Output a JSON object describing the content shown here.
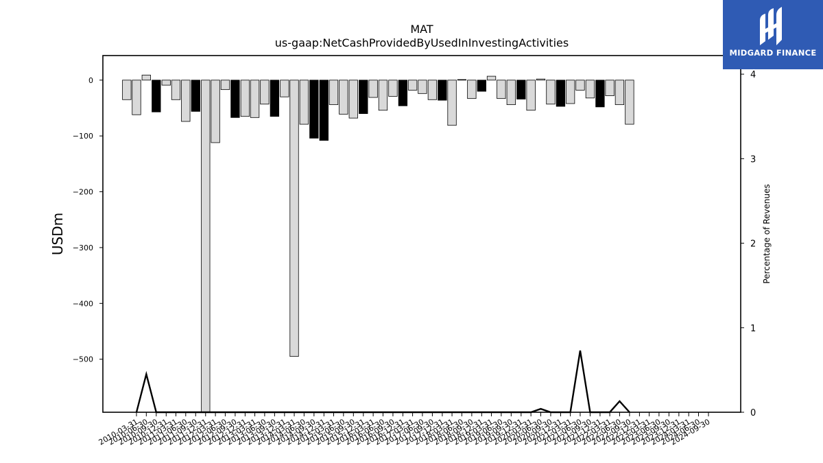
{
  "chart_data": {
    "type": "bar",
    "title": "MAT",
    "subtitle": "us-gaap:NetCashProvidedByUsedInInvestingActivities",
    "ylabel": "USDm",
    "ylabel_right": "Percentage of Revenues",
    "ylim": [
      -595,
      44
    ],
    "ylim_right": [
      0,
      4.22
    ],
    "yticks": [
      0,
      -100,
      -200,
      -300,
      -400,
      -500
    ],
    "yticks_right": [
      0,
      1,
      2,
      3,
      4
    ],
    "xtick_labels": [
      "2010-03-31",
      "2010-06-30",
      "2010-09-30",
      "2010-12-31",
      "2011-03-31",
      "2011-06-30",
      "2011-09-30",
      "2011-12-31",
      "2012-03-31",
      "2012-06-30",
      "2012-09-30",
      "2012-12-31",
      "2013-03-31",
      "2013-06-30",
      "2013-09-30",
      "2013-12-31",
      "2014-03-31",
      "2014-06-30",
      "2014-09-30",
      "2014-12-31",
      "2015-03-31",
      "2015-06-30",
      "2015-09-30",
      "2015-12-31",
      "2016-03-31",
      "2016-06-30",
      "2016-09-30",
      "2016-12-31",
      "2017-03-31",
      "2017-06-30",
      "2017-09-30",
      "2017-12-31",
      "2018-03-31",
      "2018-06-30",
      "2018-09-30",
      "2018-12-31",
      "2019-03-31",
      "2019-06-30",
      "2019-09-30",
      "2019-12-31",
      "2020-03-31",
      "2020-06-30",
      "2020-09-30",
      "2020-12-31",
      "2021-03-31",
      "2021-06-30",
      "2021-09-30",
      "2021-12-31",
      "2022-03-31",
      "2022-06-30",
      "2022-09-30",
      "2022-12-31",
      "2023-03-31",
      "2023-06-30",
      "2023-09-30",
      "2023-12-31",
      "2024-03-31",
      "2024-06-30",
      "2024-09-30"
    ],
    "bars": [
      {
        "x": "2009-12-31",
        "value": -35,
        "color": "#d9d9d9"
      },
      {
        "x": "2010-03-31",
        "value": -62,
        "color": "#d9d9d9"
      },
      {
        "x": "2010-06-30",
        "value": 9,
        "color": "#d9d9d9"
      },
      {
        "x": "2010-09-30",
        "value": -57,
        "color": "#000000"
      },
      {
        "x": "2010-12-31",
        "value": -9,
        "color": "#d9d9d9"
      },
      {
        "x": "2011-03-31",
        "value": -35,
        "color": "#d9d9d9"
      },
      {
        "x": "2011-06-30",
        "value": -74,
        "color": "#d9d9d9"
      },
      {
        "x": "2011-09-30",
        "value": -56,
        "color": "#000000"
      },
      {
        "x": "2011-12-31",
        "value": -610,
        "color": "#d9d9d9"
      },
      {
        "x": "2012-03-31",
        "value": -112,
        "color": "#d9d9d9"
      },
      {
        "x": "2012-06-30",
        "value": -17,
        "color": "#d9d9d9"
      },
      {
        "x": "2012-09-30",
        "value": -67,
        "color": "#000000"
      },
      {
        "x": "2012-12-31",
        "value": -65,
        "color": "#d9d9d9"
      },
      {
        "x": "2013-03-31",
        "value": -67,
        "color": "#d9d9d9"
      },
      {
        "x": "2013-06-30",
        "value": -43,
        "color": "#d9d9d9"
      },
      {
        "x": "2013-09-30",
        "value": -65,
        "color": "#000000"
      },
      {
        "x": "2013-12-31",
        "value": -30,
        "color": "#d9d9d9"
      },
      {
        "x": "2014-03-31",
        "value": -495,
        "color": "#d9d9d9"
      },
      {
        "x": "2014-06-30",
        "value": -79,
        "color": "#d9d9d9"
      },
      {
        "x": "2014-09-30",
        "value": -104,
        "color": "#000000"
      },
      {
        "x": "2014-12-31",
        "value": -108,
        "color": "#000000"
      },
      {
        "x": "2015-03-31",
        "value": -44,
        "color": "#d9d9d9"
      },
      {
        "x": "2015-06-30",
        "value": -61,
        "color": "#d9d9d9"
      },
      {
        "x": "2015-09-30",
        "value": -68,
        "color": "#d9d9d9"
      },
      {
        "x": "2015-12-31",
        "value": -60,
        "color": "#000000"
      },
      {
        "x": "2016-03-31",
        "value": -31,
        "color": "#d9d9d9"
      },
      {
        "x": "2016-06-30",
        "value": -54,
        "color": "#d9d9d9"
      },
      {
        "x": "2016-09-30",
        "value": -29,
        "color": "#d9d9d9"
      },
      {
        "x": "2016-12-31",
        "value": -46,
        "color": "#000000"
      },
      {
        "x": "2017-03-31",
        "value": -18,
        "color": "#d9d9d9"
      },
      {
        "x": "2017-06-30",
        "value": -24,
        "color": "#d9d9d9"
      },
      {
        "x": "2017-09-30",
        "value": -35,
        "color": "#d9d9d9"
      },
      {
        "x": "2017-12-31",
        "value": -36,
        "color": "#000000"
      },
      {
        "x": "2018-03-31",
        "value": -81,
        "color": "#d9d9d9"
      },
      {
        "x": "2018-06-30",
        "value": 1,
        "color": "#d9d9d9"
      },
      {
        "x": "2018-09-30",
        "value": -33,
        "color": "#d9d9d9"
      },
      {
        "x": "2018-12-31",
        "value": -20,
        "color": "#000000"
      },
      {
        "x": "2019-03-31",
        "value": 7,
        "color": "#d9d9d9"
      },
      {
        "x": "2019-06-30",
        "value": -33,
        "color": "#d9d9d9"
      },
      {
        "x": "2019-09-30",
        "value": -44,
        "color": "#d9d9d9"
      },
      {
        "x": "2019-12-31",
        "value": -34,
        "color": "#000000"
      },
      {
        "x": "2020-03-31",
        "value": -54,
        "color": "#d9d9d9"
      },
      {
        "x": "2020-06-30",
        "value": 2,
        "color": "#d9d9d9"
      },
      {
        "x": "2020-09-30",
        "value": -43,
        "color": "#d9d9d9"
      },
      {
        "x": "2020-12-31",
        "value": -47,
        "color": "#000000"
      },
      {
        "x": "2021-03-31",
        "value": -42,
        "color": "#d9d9d9"
      },
      {
        "x": "2021-06-30",
        "value": -18,
        "color": "#d9d9d9"
      },
      {
        "x": "2021-09-30",
        "value": -32,
        "color": "#d9d9d9"
      },
      {
        "x": "2021-12-31",
        "value": -48,
        "color": "#000000"
      },
      {
        "x": "2022-03-31",
        "value": -28,
        "color": "#d9d9d9"
      },
      {
        "x": "2022-06-30",
        "value": -44,
        "color": "#d9d9d9"
      },
      {
        "x": "2022-09-30",
        "value": -79,
        "color": "#d9d9d9"
      }
    ],
    "pct_line": {
      "color": "#000000",
      "points": [
        {
          "x": "2010-03-31",
          "y": 0
        },
        {
          "x": "2010-06-30",
          "y": 0.45
        },
        {
          "x": "2010-09-30",
          "y": 0
        },
        {
          "x": "2020-03-31",
          "y": 0
        },
        {
          "x": "2020-06-30",
          "y": 0.04
        },
        {
          "x": "2020-09-30",
          "y": 0
        },
        {
          "x": "2021-03-31",
          "y": 0
        },
        {
          "x": "2021-06-30",
          "y": 0.73
        },
        {
          "x": "2021-09-30",
          "y": 0
        },
        {
          "x": "2022-03-31",
          "y": 0
        },
        {
          "x": "2022-06-30",
          "y": 0.13
        },
        {
          "x": "2022-09-30",
          "y": 0
        }
      ]
    }
  },
  "brand": {
    "name": "MIDGARD FINANCE",
    "background": "#2f5bb4"
  }
}
